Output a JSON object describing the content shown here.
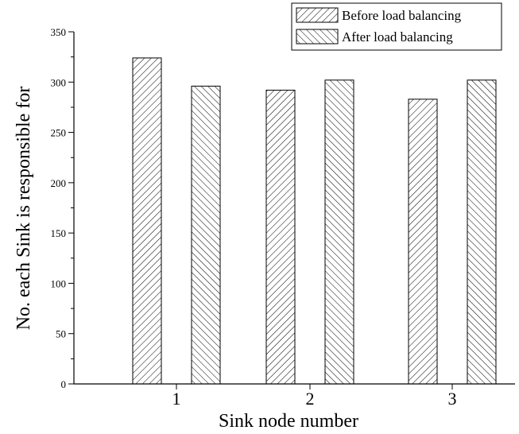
{
  "chart_data": {
    "type": "bar",
    "categories": [
      "1",
      "2",
      "3"
    ],
    "series": [
      {
        "name": "Before load balancing",
        "values": [
          324,
          292,
          283
        ],
        "pattern": "forward-hatch"
      },
      {
        "name": "After load balancing",
        "values": [
          296,
          302,
          302
        ],
        "pattern": "back-hatch"
      }
    ],
    "xlabel": "Sink node number",
    "ylabel": "No. each Sink is responsible for",
    "ylim": [
      0,
      350
    ],
    "yticks": [
      0,
      50,
      100,
      150,
      200,
      250,
      300,
      350
    ],
    "grid": false,
    "legend_position": "top-right",
    "colors": {
      "stroke": "#000000",
      "background": "#ffffff"
    }
  }
}
